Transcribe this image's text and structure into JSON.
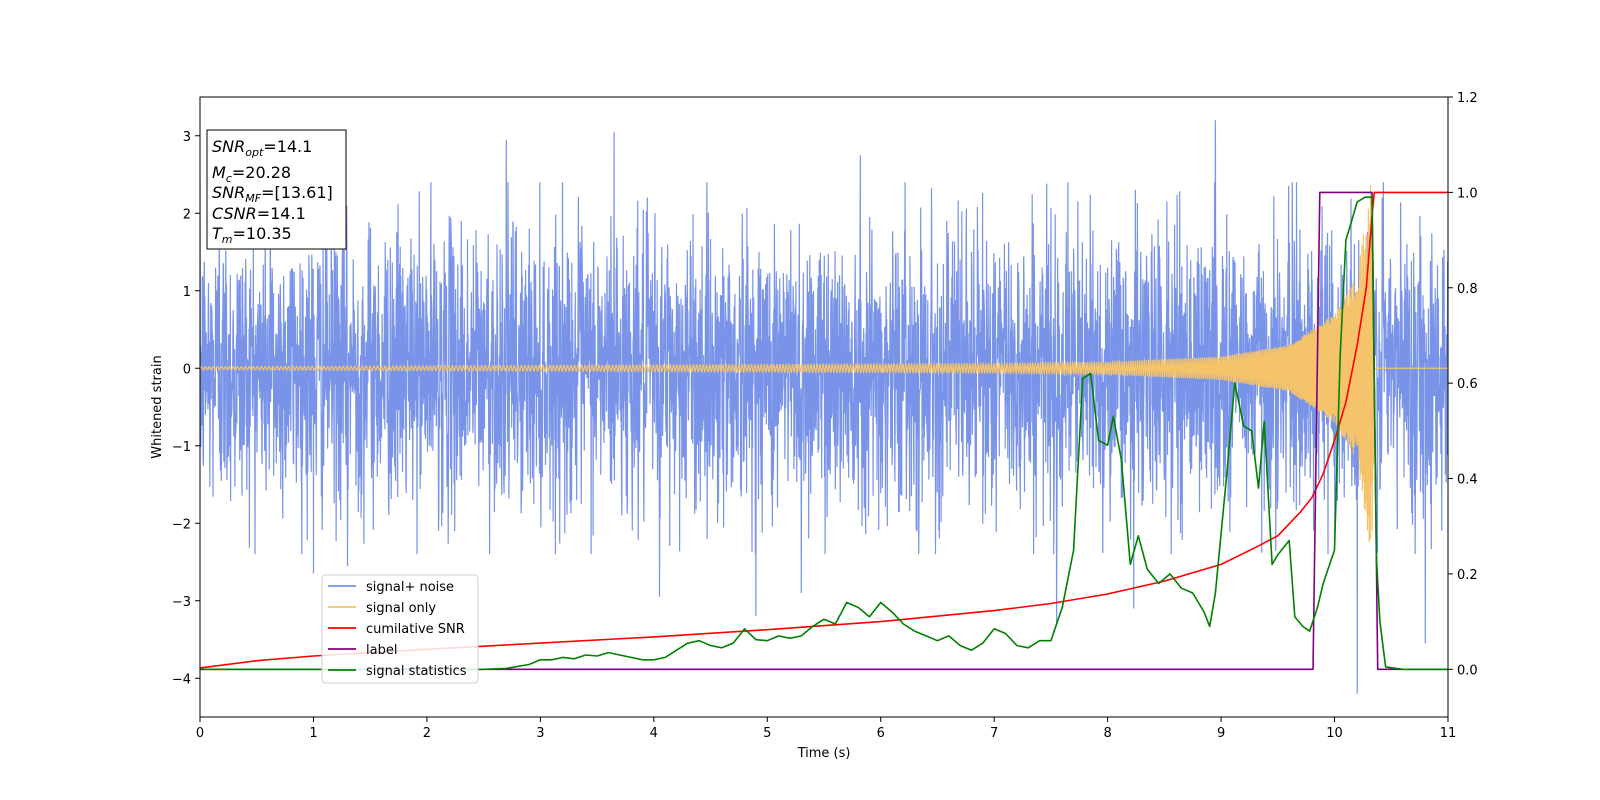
{
  "chart_data": {
    "type": "line",
    "xlabel": "Time (s)",
    "ylabel": "Whitened strain",
    "xlim": [
      0,
      11
    ],
    "ylim_left": [
      -4.5,
      3.5
    ],
    "ylim_right": [
      -0.1,
      1.2
    ],
    "x_ticks": [
      0,
      1,
      2,
      3,
      4,
      5,
      6,
      7,
      8,
      9,
      10,
      11
    ],
    "y_ticks_left": [
      -4,
      -3,
      -2,
      -1,
      0,
      1,
      2,
      3
    ],
    "y_ticks_right": [
      0.0,
      0.2,
      0.4,
      0.6,
      0.8,
      1.0,
      1.2
    ],
    "grid": false,
    "legend_position": "lower-left",
    "info_box": [
      {
        "base": "SNR",
        "sub": "opt",
        "value": "=14.1"
      },
      {
        "base": "M",
        "sub": "c",
        "value": "=20.28"
      },
      {
        "base": "SNR",
        "sub": "MF",
        "value": "=[13.61]"
      },
      {
        "base": "CSNR",
        "sub": "",
        "value": "=14.1"
      },
      {
        "base": "T",
        "sub": "m",
        "value": "=10.35"
      }
    ],
    "series": [
      {
        "name": "signal+ noise",
        "color": "#7893e8",
        "axis": "left",
        "style": "noise",
        "typical_std": 1.0,
        "peaks": [
          [
            0.17,
            2.35
          ],
          [
            0.62,
            2.45
          ],
          [
            1.0,
            -2.65
          ],
          [
            1.3,
            -2.55
          ],
          [
            2.7,
            2.95
          ],
          [
            3.65,
            3.05
          ],
          [
            4.05,
            -2.95
          ],
          [
            4.9,
            -3.2
          ],
          [
            5.3,
            -2.9
          ],
          [
            5.82,
            2.75
          ],
          [
            7.55,
            -3.3
          ],
          [
            8.23,
            -3.1
          ],
          [
            8.95,
            3.2
          ],
          [
            10.2,
            -4.2
          ],
          [
            10.42,
            2.2
          ],
          [
            10.8,
            -3.55
          ]
        ]
      },
      {
        "name": "signal only",
        "color": "#f5c46a",
        "axis": "left",
        "style": "chirp",
        "amplitude_envelope": [
          [
            0,
            0.02
          ],
          [
            7,
            0.06
          ],
          [
            8,
            0.08
          ],
          [
            9,
            0.15
          ],
          [
            9.6,
            0.3
          ],
          [
            10.0,
            0.7
          ],
          [
            10.2,
            1.2
          ],
          [
            10.33,
            2.5
          ],
          [
            10.36,
            0.0
          ],
          [
            11,
            0.0
          ]
        ],
        "merger_time": 10.35
      },
      {
        "name": "cumilative SNR",
        "color": "#ff0000",
        "axis": "right",
        "x": [
          0,
          0.5,
          1,
          2,
          3,
          4,
          5,
          6,
          7,
          7.5,
          8,
          8.5,
          9,
          9.3,
          9.5,
          9.7,
          9.8,
          9.9,
          10.0,
          10.1,
          10.2,
          10.28,
          10.33,
          10.35,
          10.4,
          11
        ],
        "y": [
          0.003,
          0.018,
          0.028,
          0.042,
          0.055,
          0.068,
          0.083,
          0.1,
          0.123,
          0.138,
          0.158,
          0.185,
          0.22,
          0.255,
          0.28,
          0.33,
          0.36,
          0.41,
          0.48,
          0.56,
          0.68,
          0.8,
          0.95,
          1.0,
          1.0,
          1.0
        ]
      },
      {
        "name": "label",
        "color": "#800080",
        "axis": "right",
        "x": [
          0,
          9.81,
          9.87,
          10.33,
          10.38,
          11
        ],
        "y": [
          0,
          0,
          1,
          1,
          0,
          0
        ]
      },
      {
        "name": "signal statistics",
        "color": "#008000",
        "axis": "right",
        "x": [
          0,
          0.5,
          1,
          1.5,
          2,
          2.5,
          2.7,
          2.9,
          3.0,
          3.1,
          3.2,
          3.3,
          3.4,
          3.5,
          3.6,
          3.7,
          3.8,
          3.9,
          4.0,
          4.1,
          4.2,
          4.3,
          4.4,
          4.5,
          4.6,
          4.7,
          4.8,
          4.9,
          5.0,
          5.1,
          5.2,
          5.3,
          5.4,
          5.5,
          5.6,
          5.7,
          5.8,
          5.9,
          6.0,
          6.1,
          6.2,
          6.3,
          6.4,
          6.5,
          6.6,
          6.7,
          6.8,
          6.9,
          7.0,
          7.1,
          7.2,
          7.3,
          7.4,
          7.5,
          7.6,
          7.7,
          7.78,
          7.85,
          7.92,
          8.0,
          8.05,
          8.12,
          8.2,
          8.27,
          8.35,
          8.45,
          8.55,
          8.65,
          8.75,
          8.85,
          8.9,
          8.95,
          9.05,
          9.12,
          9.2,
          9.27,
          9.33,
          9.38,
          9.45,
          9.5,
          9.6,
          9.65,
          9.72,
          9.78,
          9.85,
          9.9,
          10.0,
          10.05,
          10.1,
          10.15,
          10.2,
          10.27,
          10.33,
          10.37,
          10.4,
          10.45,
          10.6,
          11
        ],
        "y": [
          0,
          0,
          0,
          0,
          0,
          0,
          0.002,
          0.01,
          0.02,
          0.02,
          0.025,
          0.022,
          0.03,
          0.028,
          0.035,
          0.03,
          0.025,
          0.02,
          0.02,
          0.025,
          0.04,
          0.055,
          0.06,
          0.05,
          0.045,
          0.055,
          0.085,
          0.062,
          0.06,
          0.07,
          0.065,
          0.07,
          0.09,
          0.105,
          0.095,
          0.14,
          0.13,
          0.11,
          0.14,
          0.12,
          0.095,
          0.08,
          0.07,
          0.06,
          0.07,
          0.05,
          0.04,
          0.055,
          0.085,
          0.075,
          0.05,
          0.045,
          0.06,
          0.06,
          0.13,
          0.25,
          0.61,
          0.62,
          0.48,
          0.47,
          0.53,
          0.44,
          0.22,
          0.28,
          0.21,
          0.18,
          0.2,
          0.17,
          0.16,
          0.12,
          0.09,
          0.16,
          0.41,
          0.6,
          0.51,
          0.5,
          0.38,
          0.52,
          0.22,
          0.24,
          0.27,
          0.11,
          0.09,
          0.08,
          0.13,
          0.18,
          0.25,
          0.66,
          0.9,
          0.94,
          0.98,
          0.99,
          0.99,
          0.23,
          0.1,
          0.005,
          0,
          0
        ]
      }
    ]
  }
}
